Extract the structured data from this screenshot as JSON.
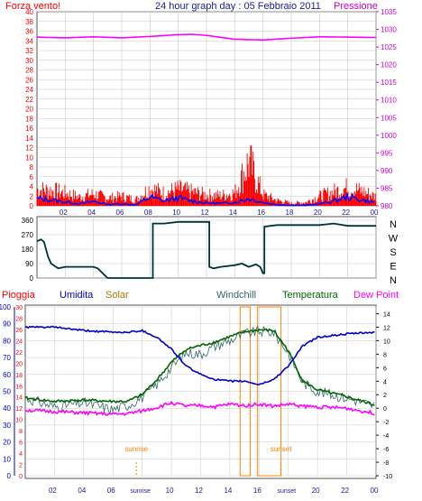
{
  "header": {
    "left_label": "Forza vento!",
    "title": "24 hour graph day : 05 Febbraio 2011",
    "right_label": "Pressione"
  },
  "colors": {
    "wind": "#ff0000",
    "wind_avg": "#0000ff",
    "pressure": "#ff00ff",
    "direction": "#003333",
    "rain": "#ff0000",
    "humidity": "#0000cc",
    "solar": "#aa7700",
    "windchill": "#336666",
    "temperature": "#006600",
    "dewpoint": "#ff00ff",
    "sun": "#ff8000",
    "axis_left": "#ff0000",
    "axis_right": "#cc00cc",
    "axis_blue": "#0000cc",
    "grid": "#c8c8c8",
    "frame": "#555555"
  },
  "x_ticks": [
    "02",
    "04",
    "06",
    "08",
    "10",
    "12",
    "14",
    "16",
    "18",
    "20",
    "22",
    "00"
  ],
  "x_ticks_bottom": [
    "02",
    "04",
    "06",
    "sunrise",
    "10",
    "12",
    "14",
    "16",
    "sunset",
    "20",
    "22",
    "00"
  ],
  "chart_data": [
    {
      "type": "line",
      "name_panel": "wind-pressure",
      "yleft_ticks": [
        "0",
        "2",
        "4",
        "6",
        "8",
        "10",
        "12",
        "14",
        "16",
        "18",
        "20",
        "22",
        "24",
        "26",
        "28",
        "30",
        "32",
        "34",
        "36",
        "38",
        "40"
      ],
      "yright_ticks": [
        "980",
        "985",
        "990",
        "995",
        "1000",
        "1005",
        "1010",
        "1015",
        "1020",
        "1025",
        "1030",
        "1035"
      ],
      "ylim_left": [
        0,
        40
      ],
      "ylim_right": [
        980,
        1035
      ],
      "pressure_hours": [
        0,
        2,
        4,
        6,
        8,
        10,
        11,
        12,
        14,
        16,
        18,
        20,
        22,
        24
      ],
      "pressure_values": [
        1027.8,
        1027.6,
        1027.9,
        1027.6,
        1028.0,
        1028.5,
        1028.6,
        1028.3,
        1027.2,
        1027.0,
        1027.5,
        1027.9,
        1027.8,
        1027.7
      ],
      "wind_avg_hours": [
        0,
        1,
        2,
        3,
        4,
        5,
        6,
        7,
        8,
        9,
        10,
        11,
        12,
        13,
        14,
        15,
        16,
        17,
        18,
        19,
        20,
        21,
        22,
        23,
        24
      ],
      "wind_avg_values": [
        1.5,
        1.2,
        0.8,
        0.4,
        0.9,
        0.3,
        0.4,
        0.2,
        1.8,
        1.0,
        1.6,
        1.0,
        0.6,
        0.5,
        0.7,
        1.5,
        0.7,
        0.2,
        0.1,
        0.1,
        0.4,
        1.0,
        1.8,
        1.2,
        0.6
      ],
      "gust_hours": [
        0,
        1,
        2,
        3,
        4,
        5,
        6,
        7,
        8,
        9,
        10,
        11,
        12,
        13,
        14,
        15,
        16,
        17,
        18,
        19,
        20,
        21,
        22,
        23,
        24
      ],
      "gust_values": [
        4.8,
        4.5,
        3.8,
        2.6,
        3.5,
        2.3,
        2.8,
        1.8,
        5.2,
        3.7,
        4.9,
        4.0,
        3.2,
        3.0,
        3.8,
        13.0,
        3.3,
        1.6,
        0.8,
        1.0,
        2.8,
        4.1,
        5.3,
        4.3,
        2.7
      ]
    },
    {
      "type": "line",
      "name_panel": "wind-direction",
      "y_ticks": [
        "0",
        "90",
        "180",
        "270",
        "360"
      ],
      "compass": [
        "N",
        "W",
        "S",
        "E",
        "N"
      ],
      "ylim": [
        0,
        360
      ],
      "hours": [
        0,
        0.3,
        0.5,
        0.8,
        1.0,
        1.5,
        2,
        3,
        4,
        4.3,
        5,
        6,
        7,
        8,
        8.2,
        9,
        10,
        11,
        12,
        12.2,
        12.5,
        13,
        14,
        14.5,
        15,
        15.5,
        15.8,
        16,
        16.1,
        17,
        18,
        20,
        21,
        22,
        24
      ],
      "values": [
        230,
        240,
        225,
        130,
        90,
        60,
        70,
        70,
        70,
        60,
        0,
        0,
        0,
        0,
        340,
        340,
        350,
        350,
        350,
        70,
        60,
        70,
        80,
        90,
        70,
        85,
        70,
        30,
        320,
        330,
        330,
        330,
        340,
        325,
        325
      ]
    },
    {
      "type": "line",
      "name_panel": "temperature-humidity",
      "legend": [
        "Pioggia",
        "Umidita",
        "Solar",
        "Windchill",
        "Temperatura",
        "Dew Point"
      ],
      "yleft_outer_ticks": [
        "0",
        "10",
        "20",
        "30",
        "40",
        "50",
        "60",
        "70",
        "80",
        "90",
        "100"
      ],
      "yleft_inner_ticks": [
        "0",
        "2",
        "4",
        "6",
        "8",
        "10",
        "12",
        "14",
        "16",
        "18",
        "20",
        "22",
        "24",
        "26",
        "28",
        "30"
      ],
      "yright_ticks": [
        "-10",
        "-8",
        "-6",
        "-4",
        "-2",
        "0",
        "2",
        "4",
        "6",
        "8",
        "10",
        "12",
        "14"
      ],
      "ylim_temp": [
        -10,
        15
      ],
      "ylim_humidity": [
        0,
        100
      ],
      "sunrise_hour": 7.6,
      "sunset_hour": 17.5,
      "sun_markers": [
        "sunrise",
        "sunset"
      ],
      "rain_boxes": [
        [
          14.7,
          15.4
        ],
        [
          15.9,
          17.5
        ]
      ],
      "humidity_hours": [
        0,
        2,
        4,
        6,
        7,
        8,
        9,
        10,
        11,
        12,
        13,
        14,
        15,
        16,
        17,
        18,
        19,
        20,
        22,
        24
      ],
      "humidity_values": [
        88,
        88,
        86,
        85,
        85,
        86,
        82,
        75,
        65,
        60,
        57,
        56,
        56,
        54,
        57,
        65,
        77,
        82,
        84,
        85
      ],
      "temp_hours": [
        0,
        2,
        4,
        6,
        7,
        8,
        9,
        10,
        11,
        12,
        13,
        14,
        15,
        16,
        17,
        18,
        19,
        20,
        22,
        24
      ],
      "temp_values": [
        1.5,
        1.0,
        1.2,
        1.0,
        1.0,
        2.0,
        4.2,
        6.8,
        8.7,
        9.3,
        9.8,
        10.6,
        11.3,
        11.6,
        11.5,
        8.5,
        4.0,
        2.7,
        1.7,
        0.4
      ],
      "dew_hours": [
        0,
        2,
        4,
        6,
        7,
        8,
        9,
        10,
        11,
        12,
        13,
        14,
        15,
        16,
        17,
        18,
        19,
        20,
        22,
        24
      ],
      "dew_values": [
        -0.3,
        -0.5,
        -0.7,
        -0.9,
        -0.8,
        -0.4,
        0.1,
        0.8,
        0.3,
        0.4,
        0.2,
        0.6,
        0.4,
        0.6,
        0.3,
        0.6,
        0.3,
        0.2,
        0.0,
        -0.8
      ],
      "windchill_hours": [
        0,
        2,
        4,
        6,
        7,
        8,
        9,
        10,
        11,
        12,
        13,
        14,
        15,
        16,
        17,
        18,
        19,
        20,
        22,
        24
      ],
      "windchill_values": [
        1.5,
        0.2,
        0.8,
        -0.2,
        0.4,
        1.6,
        3.5,
        6.0,
        8.2,
        8.0,
        9.2,
        10.0,
        11.0,
        11.4,
        11.2,
        8.2,
        3.8,
        2.5,
        1.5,
        0.3
      ]
    }
  ]
}
